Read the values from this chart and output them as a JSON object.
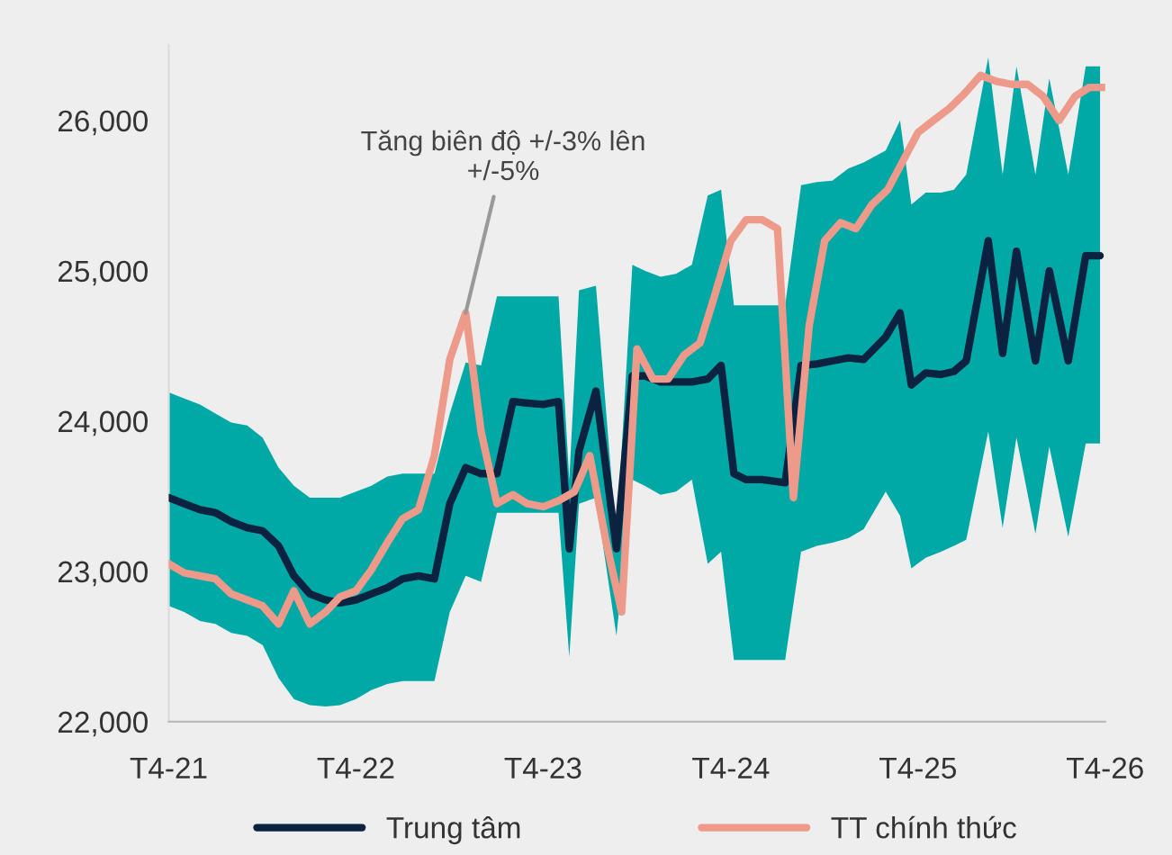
{
  "chart_data": {
    "type": "line",
    "xlim": [
      "2021-04",
      "2026-04"
    ],
    "xticks": [
      {
        "value": "2021-04",
        "label": "T4-21"
      },
      {
        "value": "2022-04",
        "label": "T4-22"
      },
      {
        "value": "2023-04",
        "label": "T4-23"
      },
      {
        "value": "2024-04",
        "label": "T4-24"
      },
      {
        "value": "2025-04",
        "label": "T4-25"
      },
      {
        "value": "2026-04",
        "label": "T4-26"
      }
    ],
    "ylim": [
      22000,
      26500
    ],
    "yticks": [
      {
        "value": 22000,
        "label": "22,000"
      },
      {
        "value": 23000,
        "label": "23,000"
      },
      {
        "value": 24000,
        "label": "24,000"
      },
      {
        "value": 25000,
        "label": "25,000"
      },
      {
        "value": 26000,
        "label": "26,000"
      }
    ],
    "grid": false,
    "legend": "bottom",
    "annotations": [
      {
        "text": "Tăng biên độ +/-3% lên\n+/-5%",
        "x": "2022-11",
        "y": 24720
      }
    ],
    "series": [
      {
        "name": "Trung tâm",
        "color": "#0b2240",
        "x": [
          "2021-04",
          "2021-05",
          "2021-06",
          "2021-07",
          "2021-08",
          "2021-09",
          "2021-10",
          "2021-11",
          "2021-12",
          "2022-01",
          "2022-02",
          "2022-03",
          "2022-04",
          "2022-05",
          "2022-06",
          "2022-07",
          "2022-08",
          "2022-09",
          "2022-10",
          "2022-11",
          "2022-12",
          "2023-01",
          "2023-02",
          "2023-03",
          "2023-04",
          "2023-05",
          "2023-05-22",
          "2023-06-10",
          "2023-07-13",
          "2023-08-22",
          "2023-09-22",
          "2023-10-16",
          "2023-11-16",
          "2023-12-16",
          "2024-01-16",
          "2024-02-16",
          "2024-03-13",
          "2024-04-07",
          "2024-05",
          "2024-06",
          "2024-07-16",
          "2024-08-16",
          "2024-09-16",
          "2024-10-16",
          "2024-11-16",
          "2024-12-16",
          "2025-01-28",
          "2025-02-25",
          "2025-03-19",
          "2025-04-16",
          "2025-05-16",
          "2025-06-10",
          "2025-07-04",
          "2025-08-16",
          "2025-09-13",
          "2025-10-10",
          "2025-11-16",
          "2025-12-13",
          "2026-01-19",
          "2026-02-22",
          "2026-03-22"
        ],
        "values": [
          23490,
          23450,
          23410,
          23390,
          23330,
          23290,
          23270,
          23170,
          22970,
          22850,
          22810,
          22790,
          22810,
          22850,
          22890,
          22950,
          22970,
          22950,
          23450,
          23690,
          23650,
          23650,
          24130,
          24120,
          24110,
          24130,
          23150,
          23800,
          24200,
          23150,
          24300,
          24300,
          24260,
          24260,
          24260,
          24280,
          24370,
          23650,
          23610,
          23610,
          23590,
          24370,
          24380,
          24400,
          24420,
          24410,
          24560,
          24720,
          24240,
          24320,
          24310,
          24330,
          24400,
          25200,
          24450,
          25130,
          24400,
          25000,
          24400,
          25100,
          25100
        ],
        "upper": [
          24190,
          24150,
          24110,
          24050,
          23990,
          23970,
          23890,
          23690,
          23570,
          23490,
          23490,
          23490,
          23530,
          23570,
          23630,
          23650,
          23650,
          23650,
          24050,
          24390,
          24370,
          24830,
          24830,
          24830,
          24830,
          24830,
          23610,
          24870,
          24900,
          23210,
          25040,
          25000,
          24960,
          24980,
          25040,
          25500,
          25540,
          24770,
          24770,
          24770,
          24770,
          25570,
          25590,
          25600,
          25680,
          25720,
          25800,
          26000,
          25440,
          25520,
          25520,
          25540,
          25640,
          26420,
          25640,
          26360,
          25640,
          26280,
          25640,
          26360,
          26360
        ],
        "lower": [
          22770,
          22730,
          22670,
          22650,
          22590,
          22570,
          22510,
          22290,
          22150,
          22110,
          22100,
          22110,
          22150,
          22210,
          22250,
          22270,
          22270,
          22270,
          22730,
          22970,
          22930,
          23390,
          23390,
          23390,
          23390,
          23390,
          22430,
          23450,
          23490,
          22570,
          23610,
          23570,
          23510,
          23530,
          23610,
          23050,
          23130,
          22410,
          22410,
          22410,
          22410,
          23130,
          23170,
          23190,
          23220,
          23280,
          23530,
          23370,
          23020,
          23090,
          23130,
          23170,
          23210,
          23930,
          23290,
          23890,
          23250,
          23830,
          23230,
          23850,
          23850
        ]
      },
      {
        "name": "TT chính thức",
        "color": "#ee9a8a",
        "x": [
          "2021-04",
          "2021-05",
          "2021-06",
          "2021-07",
          "2021-08",
          "2021-09",
          "2021-10",
          "2021-11",
          "2021-12",
          "2022-01",
          "2022-02",
          "2022-03",
          "2022-04",
          "2022-05",
          "2022-06",
          "2022-07",
          "2022-08",
          "2022-09",
          "2022-10",
          "2022-11",
          "2022-12",
          "2023-01",
          "2023-02",
          "2023-03",
          "2023-04",
          "2023-05",
          "2023-06",
          "2023-07",
          "2023-08",
          "2023-09",
          "2023-10",
          "2023-11",
          "2023-12",
          "2024-01",
          "2024-02",
          "2024-03",
          "2024-04",
          "2024-05",
          "2024-06",
          "2024-07",
          "2024-08",
          "2024-09",
          "2024-10",
          "2024-11",
          "2024-12",
          "2025-01",
          "2025-02",
          "2025-03",
          "2025-04",
          "2025-05",
          "2025-06",
          "2025-07",
          "2025-08",
          "2025-09",
          "2025-10",
          "2025-11",
          "2025-12",
          "2026-01",
          "2026-02",
          "2026-03",
          "2026-04"
        ],
        "values": [
          23050,
          22990,
          22970,
          22950,
          22850,
          22810,
          22770,
          22650,
          22870,
          22650,
          22730,
          22830,
          22870,
          23010,
          23190,
          23350,
          23410,
          23770,
          24410,
          24720,
          23930,
          23450,
          23510,
          23450,
          23430,
          23470,
          23530,
          23770,
          23210,
          22730,
          24480,
          24280,
          24280,
          24440,
          24520,
          24840,
          25200,
          25340,
          25340,
          25280,
          23490,
          24640,
          25200,
          25320,
          25280,
          25440,
          25540,
          25720,
          25920,
          26000,
          26080,
          26180,
          26300,
          26260,
          26240,
          26240,
          26160,
          26000,
          26160,
          26220,
          26220
        ]
      }
    ]
  }
}
